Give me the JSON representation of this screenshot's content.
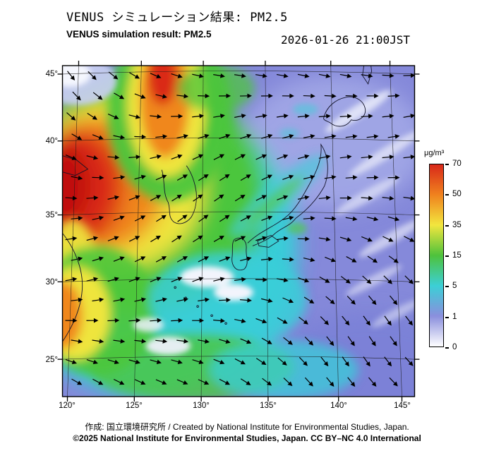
{
  "header": {
    "title_ja": "VENUS シミュレーション結果: PM2.5",
    "title_en": "VENUS simulation result: PM2.5",
    "timestamp": "2026-01-26 21:00JST"
  },
  "map": {
    "lat_ticks": [
      "45°",
      "40°",
      "35°",
      "30°",
      "25°"
    ],
    "lon_ticks": [
      "120°",
      "125°",
      "130°",
      "135°",
      "140°",
      "145°"
    ]
  },
  "colorbar": {
    "unit": "μg/m³",
    "ticks": [
      "70",
      "50",
      "35",
      "15",
      "5",
      "1",
      "0"
    ],
    "stops": [
      "#d8281a",
      "#f0821e",
      "#f2e63e",
      "#4ec23c",
      "#3ccfd6",
      "#8a8fdd",
      "#ffffff"
    ]
  },
  "footer": {
    "credit": "作成: 国立環境研究所 / Created by National Institute for Environmental Studies, Japan.",
    "license": "©2025 National Institute for Environmental Studies, Japan. CC BY–NC 4.0 International"
  }
}
